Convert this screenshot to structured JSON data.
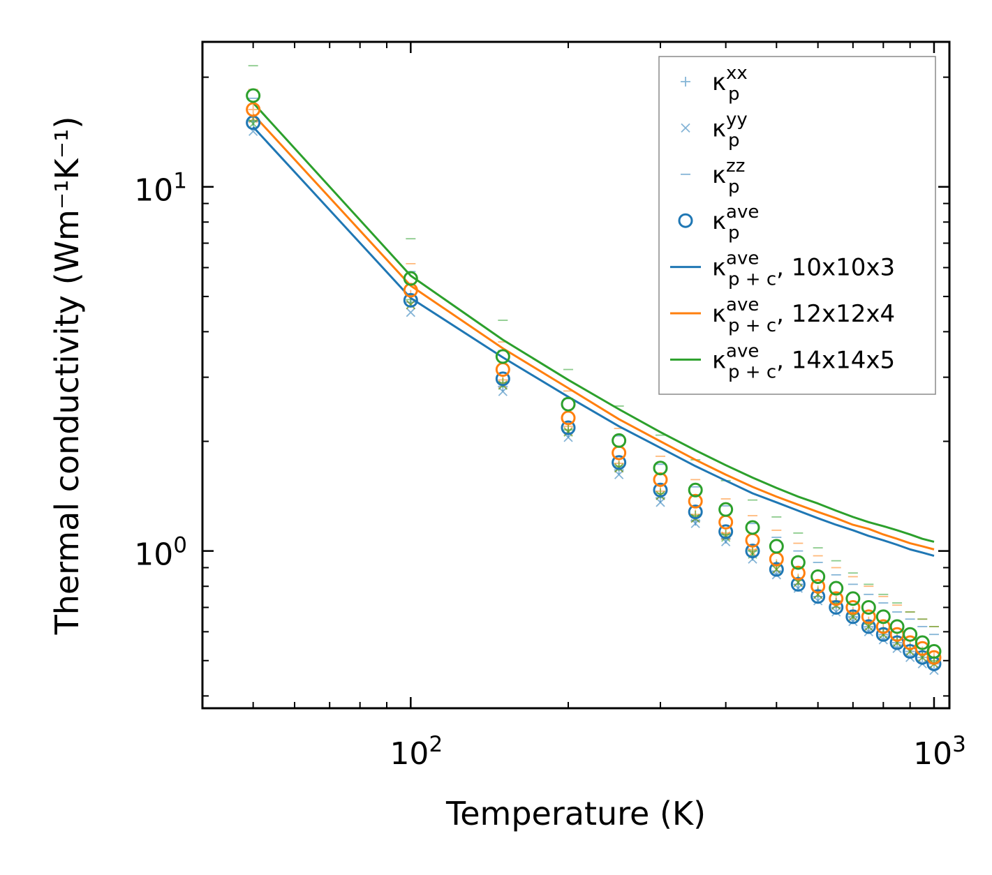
{
  "chart_data": {
    "type": "scatter",
    "xscale": "log",
    "yscale": "log",
    "xlim": [
      40,
      1070
    ],
    "ylim": [
      0.37,
      25
    ],
    "xlabel": "Temperature (K)",
    "ylabel": "Thermal conductivity (Wm⁻¹K⁻¹)",
    "x_ticks": [
      {
        "value": 100,
        "base": "10",
        "exp": "2"
      },
      {
        "value": 1000,
        "base": "10",
        "exp": "3"
      }
    ],
    "y_ticks": [
      {
        "value": 1,
        "base": "10",
        "exp": "0"
      },
      {
        "value": 10,
        "base": "10",
        "exp": "1"
      }
    ],
    "grid": false,
    "legend_position": "top-right",
    "colors": {
      "c1": "#1f77b4",
      "c2": "#ff7f0e",
      "c3": "#2ca02c"
    },
    "temperatures": [
      50,
      100,
      150,
      200,
      250,
      300,
      350,
      400,
      450,
      500,
      550,
      600,
      650,
      700,
      750,
      800,
      850,
      900,
      950,
      1000
    ],
    "point_series": [
      {
        "name": "κ_p^xx",
        "component": "xx",
        "grid_size": "10x10x3",
        "color": "#1f77b4",
        "values": [
          15.1,
          4.82,
          2.83,
          2.11,
          1.67,
          1.4,
          1.21,
          1.08,
          0.97,
          0.88,
          0.81,
          0.75,
          0.7,
          0.66,
          0.62,
          0.59,
          0.56,
          0.53,
          0.51,
          0.49
        ]
      },
      {
        "name": "κ_p^yy",
        "component": "yy",
        "grid_size": "10x10x3",
        "color": "#1f77b4",
        "values": [
          14.2,
          4.52,
          2.74,
          2.05,
          1.62,
          1.36,
          1.19,
          1.06,
          0.95,
          0.86,
          0.79,
          0.73,
          0.68,
          0.64,
          0.6,
          0.57,
          0.54,
          0.51,
          0.49,
          0.47
        ]
      },
      {
        "name": "κ_p^zz",
        "component": "zz",
        "grid_size": "10x10x3",
        "color": "#1f77b4",
        "values": [
          17.5,
          5.85,
          3.55,
          2.62,
          2.07,
          1.73,
          1.5,
          1.33,
          1.19,
          1.09,
          1.0,
          0.93,
          0.86,
          0.81,
          0.76,
          0.72,
          0.68,
          0.65,
          0.62,
          0.59
        ]
      },
      {
        "name": "κ_p^ave",
        "component": "ave",
        "grid_size": "10x10x3",
        "color": "#1f77b4",
        "values": [
          15.0,
          4.88,
          2.97,
          2.18,
          1.75,
          1.47,
          1.28,
          1.13,
          1.0,
          0.89,
          0.81,
          0.75,
          0.7,
          0.66,
          0.62,
          0.59,
          0.56,
          0.53,
          0.51,
          0.49
        ]
      },
      {
        "name": "κ_p^xx",
        "component": "xx",
        "grid_size": "12x12x4",
        "color": "#ff7f0e",
        "values": [
          16.3,
          5.05,
          2.95,
          2.2,
          1.74,
          1.46,
          1.26,
          1.12,
          1.01,
          0.92,
          0.84,
          0.78,
          0.73,
          0.68,
          0.64,
          0.61,
          0.58,
          0.55,
          0.53,
          0.51
        ]
      },
      {
        "name": "κ_p^yy",
        "component": "yy",
        "grid_size": "12x12x4",
        "color": "#ff7f0e",
        "values": [
          15.4,
          4.74,
          2.86,
          2.13,
          1.69,
          1.42,
          1.23,
          1.1,
          0.99,
          0.89,
          0.82,
          0.76,
          0.71,
          0.66,
          0.62,
          0.59,
          0.56,
          0.53,
          0.51,
          0.49
        ]
      },
      {
        "name": "κ_p^zz",
        "component": "zz",
        "grid_size": "12x12x4",
        "color": "#ff7f0e",
        "values": [
          18.5,
          6.15,
          3.75,
          2.75,
          2.17,
          1.82,
          1.57,
          1.39,
          1.25,
          1.14,
          1.05,
          0.97,
          0.9,
          0.85,
          0.8,
          0.75,
          0.71,
          0.68,
          0.65,
          0.62
        ]
      },
      {
        "name": "κ_p^ave",
        "component": "ave",
        "grid_size": "12x12x4",
        "color": "#ff7f0e",
        "values": [
          16.3,
          5.2,
          3.15,
          2.32,
          1.86,
          1.57,
          1.37,
          1.2,
          1.07,
          0.95,
          0.87,
          0.8,
          0.74,
          0.7,
          0.66,
          0.62,
          0.59,
          0.56,
          0.54,
          0.51
        ]
      },
      {
        "name": "κ_p^xx",
        "component": "xx",
        "grid_size": "14x14x5",
        "color": "#2ca02c",
        "values": [
          15.2,
          4.9,
          2.9,
          2.15,
          1.71,
          1.44,
          1.25,
          1.11,
          1.0,
          0.91,
          0.83,
          0.77,
          0.72,
          0.67,
          0.63,
          0.6,
          0.57,
          0.54,
          0.52,
          0.5
        ]
      },
      {
        "name": "κ_p^yy",
        "component": "yy",
        "grid_size": "14x14x5",
        "color": "#2ca02c",
        "values": [
          14.9,
          4.75,
          2.85,
          2.12,
          1.69,
          1.42,
          1.23,
          1.09,
          0.98,
          0.89,
          0.82,
          0.76,
          0.71,
          0.66,
          0.62,
          0.59,
          0.56,
          0.53,
          0.51,
          0.49
        ]
      },
      {
        "name": "κ_p^zz",
        "component": "zz",
        "grid_size": "14x14x5",
        "color": "#2ca02c",
        "values": [
          21.5,
          7.2,
          4.3,
          3.15,
          2.5,
          2.08,
          1.78,
          1.56,
          1.38,
          1.24,
          1.12,
          1.02,
          0.94,
          0.87,
          0.81,
          0.76,
          0.72,
          0.68,
          0.65,
          0.62
        ]
      },
      {
        "name": "κ_p^ave",
        "component": "ave",
        "grid_size": "14x14x5",
        "color": "#2ca02c",
        "values": [
          17.8,
          5.6,
          3.42,
          2.53,
          2.01,
          1.69,
          1.47,
          1.3,
          1.16,
          1.03,
          0.93,
          0.85,
          0.79,
          0.74,
          0.7,
          0.66,
          0.62,
          0.59,
          0.56,
          0.53
        ]
      }
    ],
    "line_series": [
      {
        "name": "κ_p+c^ave, 10x10x3",
        "grid_size": "10x10x3",
        "color": "#1f77b4",
        "values": [
          14.6,
          4.95,
          3.4,
          2.65,
          2.2,
          1.92,
          1.71,
          1.56,
          1.44,
          1.36,
          1.29,
          1.23,
          1.18,
          1.14,
          1.1,
          1.07,
          1.04,
          1.01,
          0.99,
          0.97
        ]
      },
      {
        "name": "κ_p+c^ave, 12x12x4",
        "grid_size": "12x12x4",
        "color": "#ff7f0e",
        "values": [
          15.8,
          5.35,
          3.6,
          2.8,
          2.3,
          2.0,
          1.78,
          1.62,
          1.5,
          1.41,
          1.34,
          1.28,
          1.23,
          1.18,
          1.15,
          1.11,
          1.08,
          1.05,
          1.03,
          1.01
        ]
      },
      {
        "name": "κ_p+c^ave, 14x14x5",
        "grid_size": "14x14x5",
        "color": "#2ca02c",
        "values": [
          17.0,
          5.7,
          3.8,
          2.95,
          2.45,
          2.12,
          1.89,
          1.72,
          1.59,
          1.49,
          1.41,
          1.35,
          1.29,
          1.24,
          1.2,
          1.17,
          1.14,
          1.11,
          1.08,
          1.06
        ]
      }
    ],
    "legend": [
      {
        "marker": "plus",
        "color": "#1f77b4",
        "base": "κ",
        "sup": "xx",
        "sub": "p",
        "suffix": ""
      },
      {
        "marker": "x",
        "color": "#1f77b4",
        "base": "κ",
        "sup": "yy",
        "sub": "p",
        "suffix": ""
      },
      {
        "marker": "dash",
        "color": "#1f77b4",
        "base": "κ",
        "sup": "zz",
        "sub": "p",
        "suffix": ""
      },
      {
        "marker": "circle",
        "color": "#1f77b4",
        "base": "κ",
        "sup": "ave",
        "sub": "p",
        "suffix": ""
      },
      {
        "marker": "line",
        "color": "#1f77b4",
        "base": "κ",
        "sup": "ave",
        "sub": "p + c",
        "suffix": ", 10x10x3"
      },
      {
        "marker": "line",
        "color": "#ff7f0e",
        "base": "κ",
        "sup": "ave",
        "sub": "p + c",
        "suffix": ", 12x12x4"
      },
      {
        "marker": "line",
        "color": "#2ca02c",
        "base": "κ",
        "sup": "ave",
        "sub": "p + c",
        "suffix": ", 14x14x5"
      }
    ]
  }
}
